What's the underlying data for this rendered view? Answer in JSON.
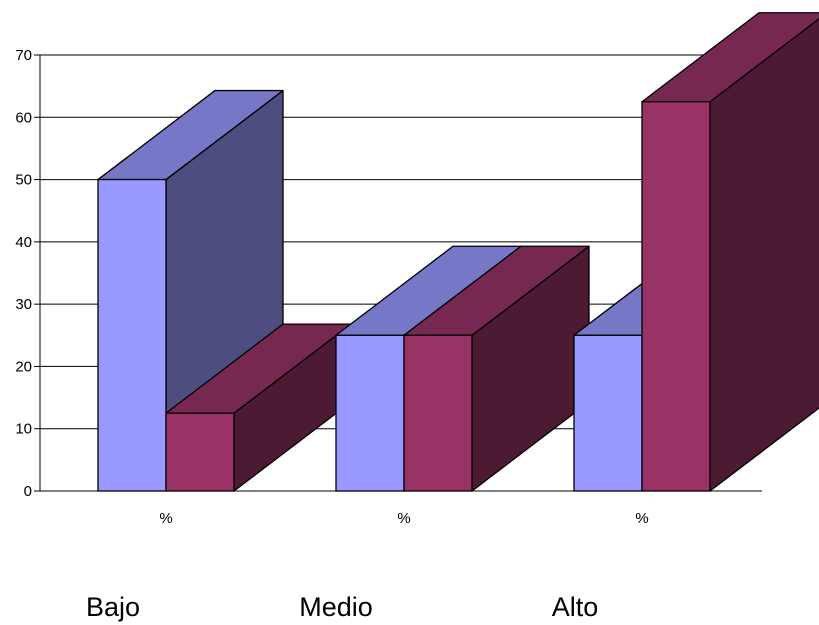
{
  "chart_data": {
    "type": "bar",
    "style": "3d-clustered-column",
    "categories": [
      "%",
      "%",
      "%"
    ],
    "group_labels": [
      "Bajo",
      "Medio",
      "Alto"
    ],
    "series": [
      {
        "values": [
          50,
          25,
          25
        ],
        "color": "#9999ff"
      },
      {
        "values": [
          12.5,
          25,
          62.5
        ],
        "color": "#993366"
      }
    ],
    "ylim": [
      0,
      70
    ],
    "yticks": [
      0,
      10,
      20,
      30,
      40,
      50,
      60,
      70
    ],
    "grid": true,
    "legend": "none"
  }
}
